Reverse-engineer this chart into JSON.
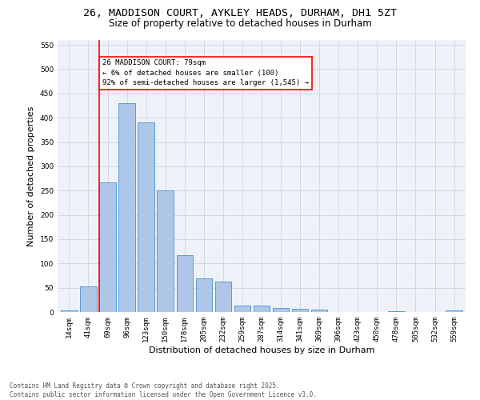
{
  "title_line1": "26, MADDISON COURT, AYKLEY HEADS, DURHAM, DH1 5ZT",
  "title_line2": "Size of property relative to detached houses in Durham",
  "xlabel": "Distribution of detached houses by size in Durham",
  "ylabel": "Number of detached properties",
  "categories": [
    "14sqm",
    "41sqm",
    "69sqm",
    "96sqm",
    "123sqm",
    "150sqm",
    "178sqm",
    "205sqm",
    "232sqm",
    "259sqm",
    "287sqm",
    "314sqm",
    "341sqm",
    "369sqm",
    "396sqm",
    "423sqm",
    "450sqm",
    "478sqm",
    "505sqm",
    "532sqm",
    "559sqm"
  ],
  "values": [
    3,
    52,
    267,
    430,
    390,
    250,
    117,
    70,
    62,
    13,
    13,
    9,
    7,
    5,
    0,
    0,
    0,
    1,
    0,
    0,
    3
  ],
  "bar_color": "#aec6e8",
  "bar_edge_color": "#5b9bd5",
  "vline_x_index": 2,
  "annotation_text": "26 MADDISON COURT: 79sqm\n← 6% of detached houses are smaller (100)\n92% of semi-detached houses are larger (1,545) →",
  "annotation_box_color": "white",
  "annotation_box_edge_color": "red",
  "vline_color": "red",
  "ylim": [
    0,
    560
  ],
  "yticks": [
    0,
    50,
    100,
    150,
    200,
    250,
    300,
    350,
    400,
    450,
    500,
    550
  ],
  "grid_color": "#d0d8e8",
  "background_color": "#eef2f8",
  "footer_text": "Contains HM Land Registry data © Crown copyright and database right 2025.\nContains public sector information licensed under the Open Government Licence v3.0.",
  "title_fontsize": 9.5,
  "subtitle_fontsize": 8.5,
  "xlabel_fontsize": 8,
  "ylabel_fontsize": 8,
  "tick_fontsize": 6.5,
  "annotation_fontsize": 6.5,
  "footer_fontsize": 5.5
}
